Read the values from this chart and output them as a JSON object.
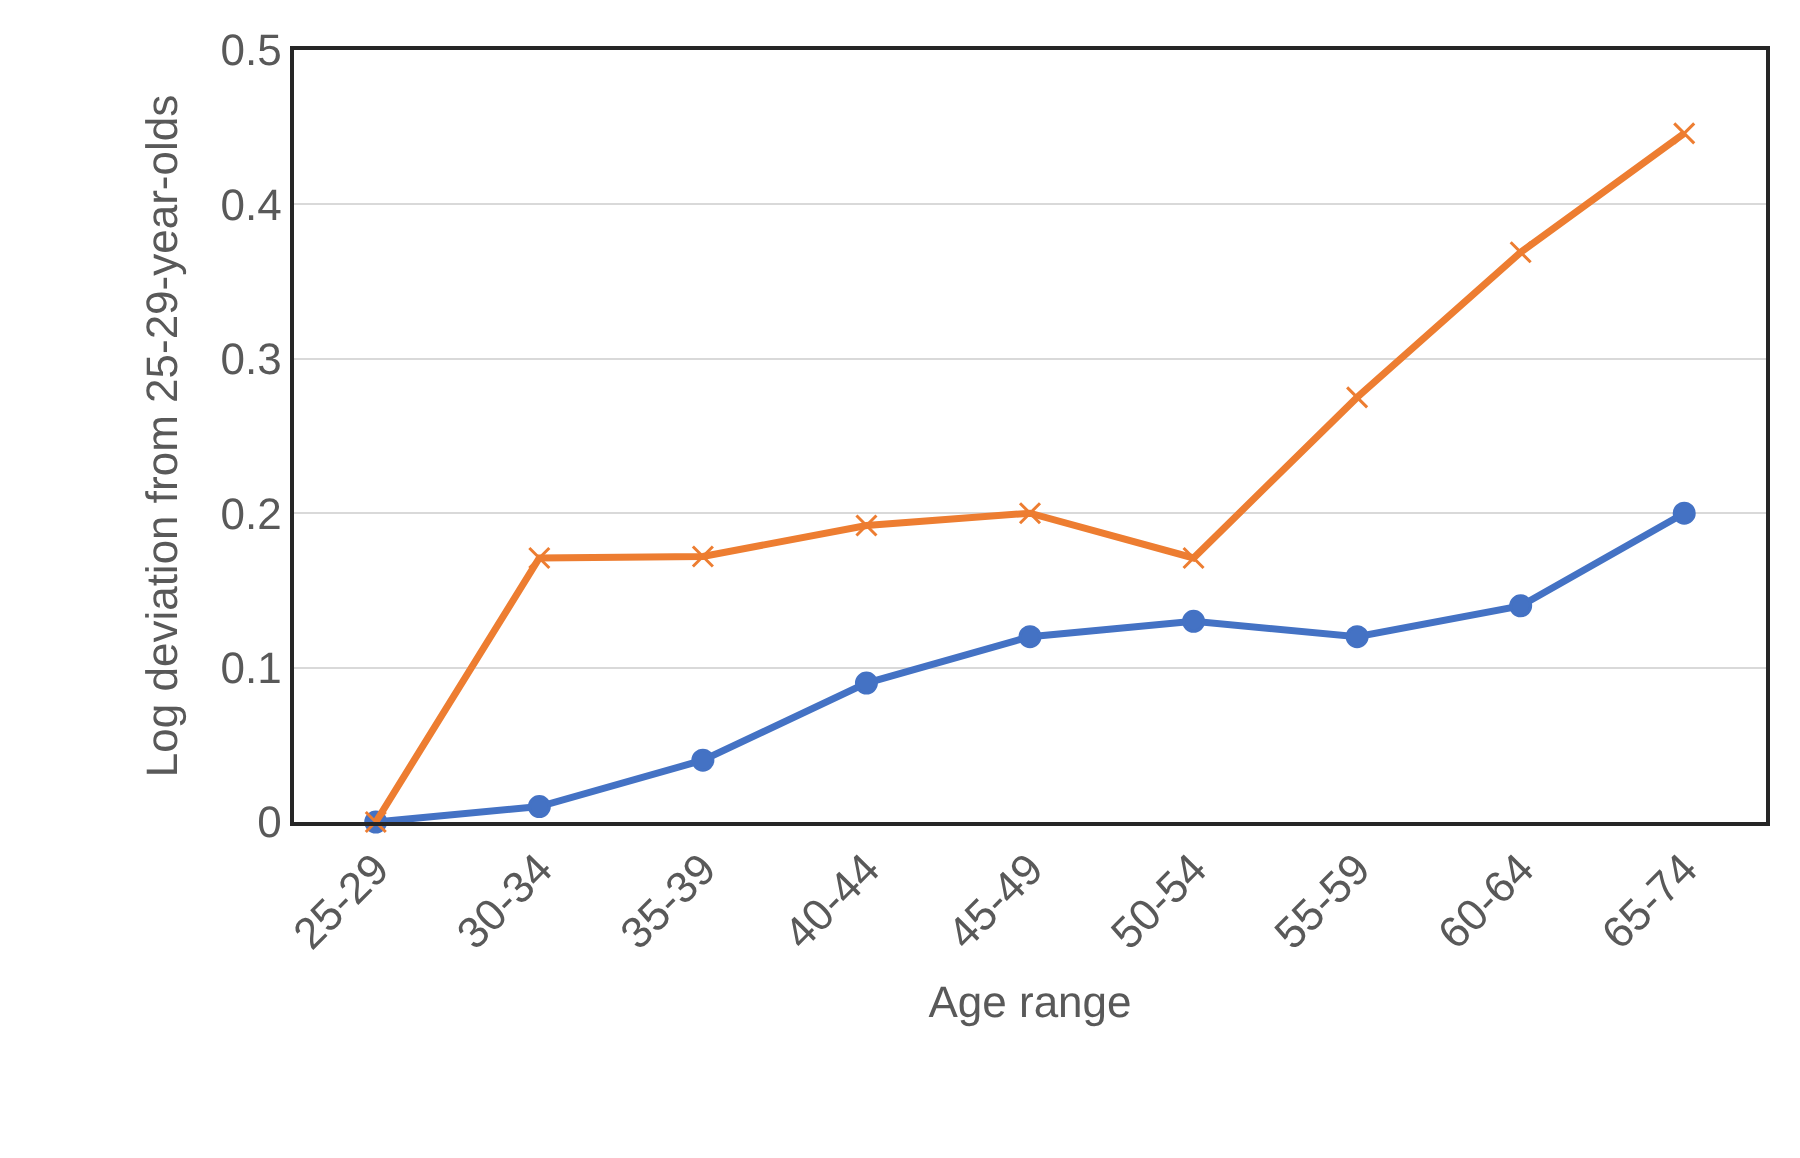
{
  "chart_data": {
    "type": "line",
    "xlabel": "Age range",
    "ylabel": "Log deviation from 25-29-year-olds",
    "categories": [
      "25-29",
      "30-34",
      "35-39",
      "40-44",
      "45-49",
      "50-54",
      "55-59",
      "60-64",
      "65-74"
    ],
    "series": [
      {
        "color": "#4472c4",
        "marker": "circle",
        "values": [
          0,
          0.01,
          0.04,
          0.09,
          0.12,
          0.13,
          0.12,
          0.14,
          0.2
        ]
      },
      {
        "color": "#ed7d31",
        "marker": "cross",
        "values": [
          0,
          0.171,
          0.172,
          0.192,
          0.2,
          0.171,
          0.275,
          0.369,
          0.446
        ]
      }
    ],
    "ylim": [
      0,
      0.5
    ],
    "yticks": [
      0,
      0.1,
      0.2,
      0.3,
      0.4,
      0.5
    ],
    "grid": "y",
    "line_style": "solid"
  }
}
